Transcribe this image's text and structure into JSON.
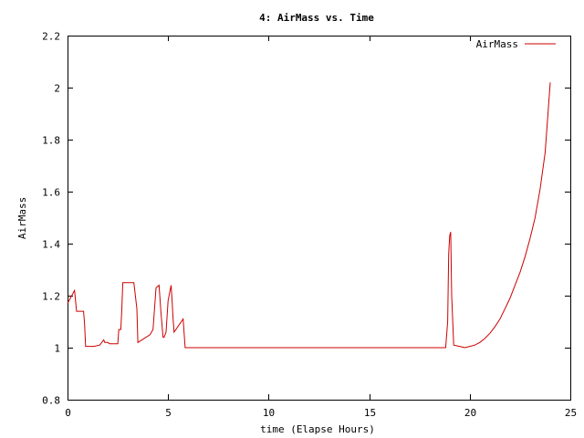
{
  "chart_data": {
    "type": "line",
    "title": "4: AirMass vs. Time",
    "xlabel": "time (Elapse Hours)",
    "ylabel": "AirMass",
    "xlim": [
      0,
      25
    ],
    "ylim": [
      0.8,
      2.2
    ],
    "xticks": [
      0,
      5,
      10,
      15,
      20,
      25
    ],
    "xtick_labels": [
      "0",
      "5",
      "10",
      "15",
      "20",
      "25"
    ],
    "yticks": [
      0.8,
      1,
      1.2,
      1.4,
      1.6,
      1.8,
      2,
      2.2
    ],
    "ytick_labels": [
      "0.8",
      "1",
      "1.2",
      "1.4",
      "1.6",
      "1.8",
      "2",
      "2.2"
    ],
    "grid": false,
    "legend": "top-right",
    "series": [
      {
        "name": "AirMass",
        "color": "#cc0000",
        "x": [
          0,
          0.35,
          0.45,
          0.55,
          0.8,
          0.85,
          0.9,
          1.3,
          1.6,
          1.8,
          1.85,
          2.0,
          2.1,
          2.5,
          2.55,
          2.65,
          2.7,
          2.75,
          3.3,
          3.45,
          3.5,
          4.1,
          4.25,
          4.4,
          4.55,
          4.65,
          4.75,
          4.8,
          4.9,
          5.0,
          5.1,
          5.15,
          5.2,
          5.25,
          5.3,
          5.75,
          5.85,
          6.2,
          10,
          15,
          18.5,
          18.8,
          18.9,
          18.95,
          19.0,
          19.05,
          19.1,
          19.2,
          19.5,
          19.75,
          20.0,
          20.25,
          20.5,
          20.75,
          21.0,
          21.25,
          21.5,
          21.75,
          22.0,
          22.25,
          22.5,
          22.75,
          23.0,
          23.25,
          23.5,
          23.75,
          24.0
        ],
        "y": [
          1.17,
          1.22,
          1.14,
          1.14,
          1.14,
          1.09,
          1.005,
          1.005,
          1.01,
          1.03,
          1.02,
          1.02,
          1.015,
          1.015,
          1.07,
          1.07,
          1.15,
          1.25,
          1.25,
          1.15,
          1.02,
          1.05,
          1.07,
          1.23,
          1.24,
          1.13,
          1.04,
          1.04,
          1.06,
          1.18,
          1.22,
          1.24,
          1.18,
          1.11,
          1.06,
          1.11,
          1.0,
          1.0,
          1.0,
          1.0,
          1.0,
          1.0,
          1.1,
          1.36,
          1.43,
          1.445,
          1.2,
          1.01,
          1.005,
          1.0,
          1.005,
          1.01,
          1.02,
          1.035,
          1.055,
          1.08,
          1.11,
          1.15,
          1.19,
          1.24,
          1.29,
          1.35,
          1.42,
          1.5,
          1.61,
          1.75,
          2.02
        ]
      }
    ]
  }
}
